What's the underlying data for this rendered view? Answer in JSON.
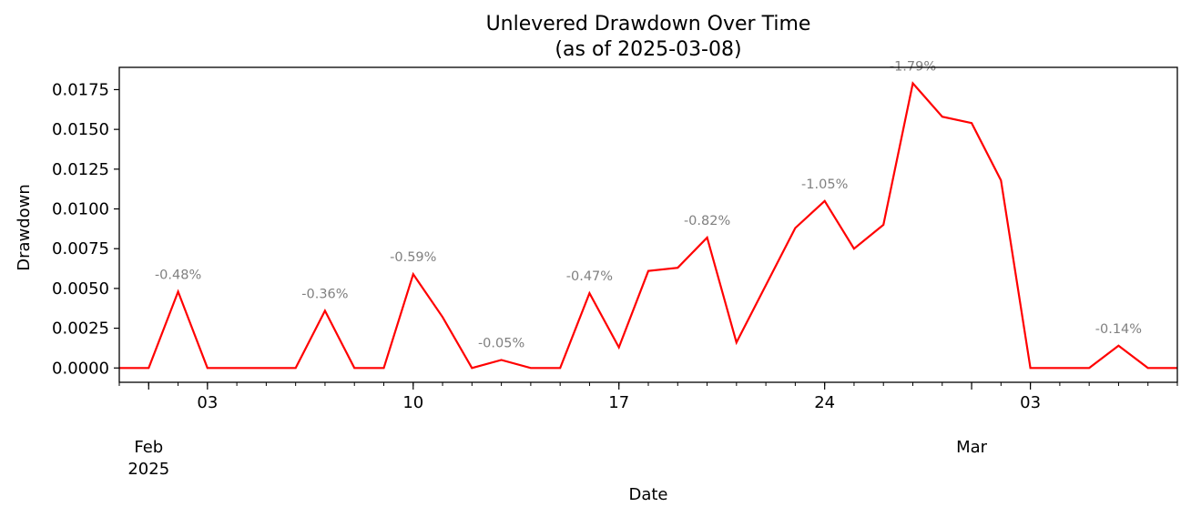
{
  "chart_data": {
    "type": "line",
    "title": "Unlevered Drawdown Over Time",
    "subtitle": "(as of 2025-03-08)",
    "xlabel": "Date",
    "ylabel": "Drawdown",
    "x_range": [
      "2025-01-31",
      "2025-03-08"
    ],
    "ylim": [
      -0.0009,
      0.0189
    ],
    "grid": false,
    "line_color": "#ff0000",
    "annotation_color": "#808080",
    "yticks": [
      0.0,
      0.0025,
      0.005,
      0.0075,
      0.01,
      0.0125,
      0.015,
      0.0175
    ],
    "ytick_labels": [
      "0.0000",
      "0.0025",
      "0.0050",
      "0.0075",
      "0.0100",
      "0.0125",
      "0.0150",
      "0.0175"
    ],
    "x_major_ticks": [
      {
        "date": "2025-02-03",
        "label": "03"
      },
      {
        "date": "2025-02-10",
        "label": "10"
      },
      {
        "date": "2025-02-17",
        "label": "17"
      },
      {
        "date": "2025-02-24",
        "label": "24"
      },
      {
        "date": "2025-03-03",
        "label": "03"
      }
    ],
    "x_month_labels": [
      {
        "date": "2025-02-01",
        "label": "Feb",
        "year": "2025"
      },
      {
        "date": "2025-03-01",
        "label": "Mar",
        "year": ""
      }
    ],
    "series": [
      {
        "x": [
          "2025-01-31",
          "2025-02-01",
          "2025-02-02",
          "2025-02-03",
          "2025-02-04",
          "2025-02-05",
          "2025-02-06",
          "2025-02-07",
          "2025-02-08",
          "2025-02-09",
          "2025-02-10",
          "2025-02-11",
          "2025-02-12",
          "2025-02-13",
          "2025-02-14",
          "2025-02-15",
          "2025-02-16",
          "2025-02-17",
          "2025-02-18",
          "2025-02-19",
          "2025-02-20",
          "2025-02-21",
          "2025-02-22",
          "2025-02-23",
          "2025-02-24",
          "2025-02-25",
          "2025-02-26",
          "2025-02-27",
          "2025-02-28",
          "2025-03-01",
          "2025-03-02",
          "2025-03-03",
          "2025-03-04",
          "2025-03-05",
          "2025-03-06",
          "2025-03-07",
          "2025-03-08"
        ],
        "values": [
          0.0,
          0.0,
          0.0048,
          0.0,
          0.0,
          0.0,
          0.0,
          0.0036,
          0.0,
          0.0,
          0.0059,
          0.0032,
          0.0,
          0.0005,
          0.0,
          0.0,
          0.0047,
          0.0013,
          0.0061,
          0.0063,
          0.0082,
          0.0016,
          0.0052,
          0.0088,
          0.0105,
          0.0075,
          0.009,
          0.0179,
          0.0158,
          0.0154,
          0.0118,
          0.0,
          0.0,
          0.0,
          0.0014,
          0.0,
          0.0
        ]
      }
    ],
    "annotations": [
      {
        "x": "2025-02-02",
        "y": 0.0048,
        "text": "-0.48%"
      },
      {
        "x": "2025-02-07",
        "y": 0.0036,
        "text": "-0.36%"
      },
      {
        "x": "2025-02-10",
        "y": 0.0059,
        "text": "-0.59%"
      },
      {
        "x": "2025-02-13",
        "y": 0.0005,
        "text": "-0.05%"
      },
      {
        "x": "2025-02-16",
        "y": 0.0047,
        "text": "-0.47%"
      },
      {
        "x": "2025-02-20",
        "y": 0.0082,
        "text": "-0.82%"
      },
      {
        "x": "2025-02-24",
        "y": 0.0105,
        "text": "-1.05%"
      },
      {
        "x": "2025-02-27",
        "y": 0.0179,
        "text": "-1.79%"
      },
      {
        "x": "2025-03-06",
        "y": 0.0014,
        "text": "-0.14%"
      }
    ]
  }
}
